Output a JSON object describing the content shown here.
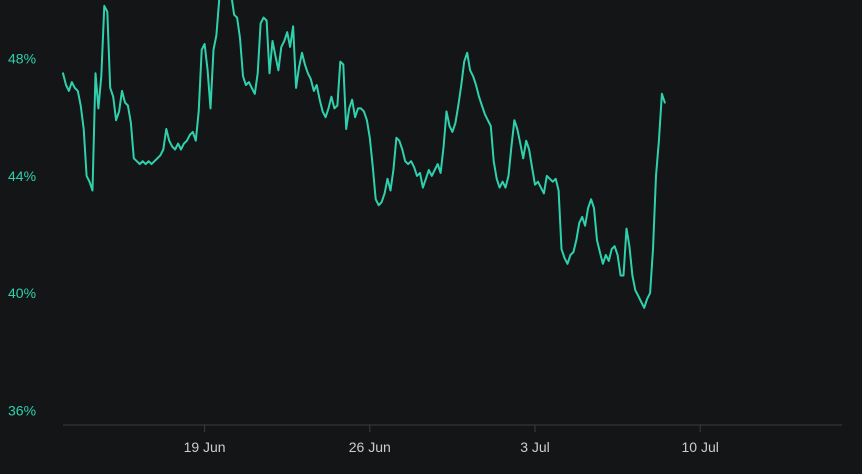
{
  "chart_data": {
    "type": "line",
    "title": "",
    "xlabel": "",
    "ylabel": "",
    "ylim": [
      35.5,
      50
    ],
    "y_ticks": [
      "36%",
      "40%",
      "44%",
      "48%"
    ],
    "y_tick_values": [
      36,
      40,
      44,
      48
    ],
    "x_ticks": [
      "19 Jun",
      "26 Jun",
      "3 Jul",
      "10 Jul"
    ],
    "x_tick_values": [
      "2023-06-19",
      "2023-06-26",
      "2023-07-03",
      "2023-07-10"
    ],
    "grid": false,
    "legend": "none",
    "line_color": "#2fd1ad",
    "series": [
      {
        "x_start": "2023-06-13T00:00",
        "x_step_hours": 3,
        "values": [
          47.5,
          47.1,
          46.9,
          47.2,
          47.0,
          46.9,
          46.4,
          45.6,
          44.0,
          43.8,
          43.5,
          47.5,
          46.3,
          47.4,
          49.8,
          49.6,
          47.0,
          46.7,
          45.9,
          46.2,
          46.9,
          46.5,
          46.4,
          45.8,
          44.6,
          44.5,
          44.4,
          44.5,
          44.4,
          44.5,
          44.4,
          44.5,
          44.6,
          44.7,
          44.9,
          45.6,
          45.2,
          45.0,
          44.9,
          45.1,
          44.9,
          45.1,
          45.2,
          45.4,
          45.5,
          45.2,
          46.2,
          48.3,
          48.5,
          47.6,
          46.3,
          48.3,
          48.8,
          50.1,
          51.2,
          50.6,
          50.9,
          50.2,
          49.5,
          49.4,
          48.7,
          47.4,
          47.1,
          47.2,
          47.0,
          46.8,
          47.5,
          49.2,
          49.4,
          49.3,
          47.5,
          48.6,
          48.1,
          47.6,
          48.4,
          48.6,
          48.9,
          48.4,
          49.1,
          47.0,
          47.7,
          48.2,
          47.8,
          47.5,
          47.3,
          46.9,
          47.1,
          46.6,
          46.2,
          46.0,
          46.3,
          46.7,
          46.3,
          46.4,
          47.9,
          47.8,
          45.6,
          46.3,
          46.6,
          46.0,
          46.3,
          46.3,
          46.2,
          45.9,
          45.3,
          44.3,
          43.2,
          43.0,
          43.1,
          43.4,
          43.9,
          43.5,
          44.2,
          45.3,
          45.2,
          44.9,
          44.5,
          44.4,
          44.5,
          44.3,
          44.0,
          44.1,
          43.6,
          43.9,
          44.2,
          44.0,
          44.2,
          44.4,
          44.1,
          45.0,
          46.2,
          45.7,
          45.5,
          45.8,
          46.4,
          47.1,
          47.9,
          48.2,
          47.6,
          47.4,
          47.1,
          46.7,
          46.4,
          46.1,
          45.9,
          45.7,
          44.5,
          43.9,
          43.6,
          43.8,
          43.6,
          44.0,
          45.0,
          45.9,
          45.6,
          45.1,
          44.6,
          45.2,
          44.9,
          44.3,
          43.7,
          43.8,
          43.6,
          43.4,
          44.0,
          43.9,
          43.8,
          43.9,
          43.5,
          41.5,
          41.2,
          41.0,
          41.3,
          41.4,
          41.8,
          42.4,
          42.6,
          42.3,
          42.9,
          43.2,
          42.9,
          41.8,
          41.4,
          41.0,
          41.3,
          41.1,
          41.5,
          41.6,
          41.3,
          40.6,
          40.6,
          42.2,
          41.6,
          40.6,
          40.1,
          39.9,
          39.7,
          39.5,
          39.8,
          40.0,
          41.5,
          44.0,
          45.2,
          46.8,
          46.5
        ],
        "sampling": "one value every 3 hours from 13 Jun 00:00, first value at the left edge of the plot"
      }
    ]
  }
}
